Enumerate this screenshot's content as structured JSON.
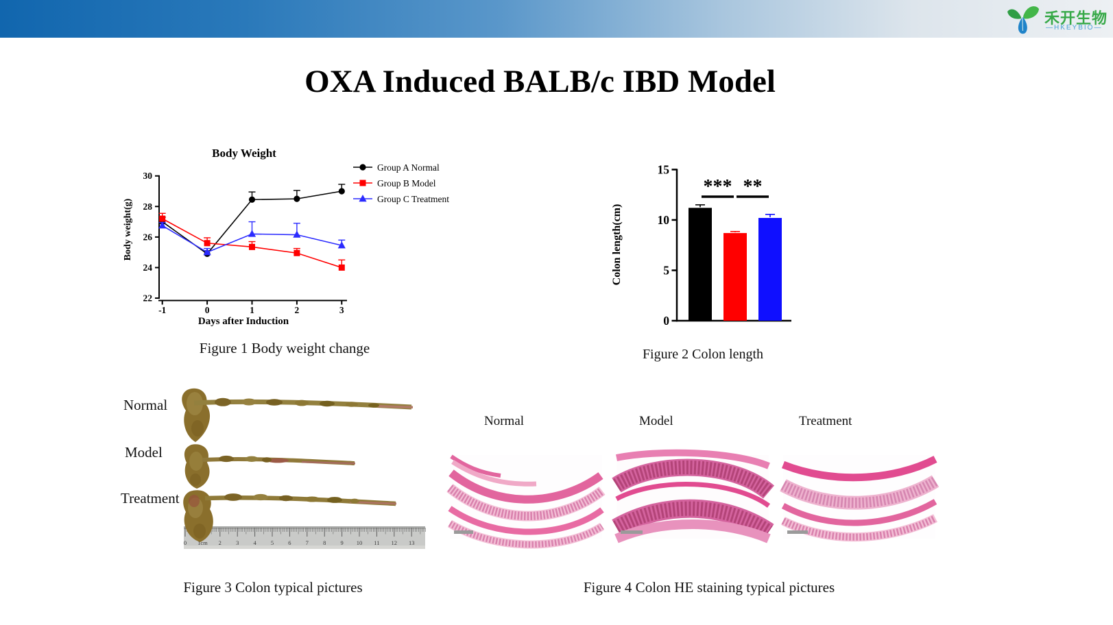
{
  "page": {
    "title": "OXA Induced BALB/c IBD Model"
  },
  "logo": {
    "company_cn": "禾开生物",
    "company_en": "—HKEYBIO—",
    "icon": "leaf-sprout-icon",
    "green": "#37a948",
    "blue": "#1f83c9"
  },
  "chart_data": [
    {
      "id": "body_weight",
      "type": "line",
      "title": "Body Weight",
      "xlabel": "Days after Induction",
      "ylabel": "Body weight(g)",
      "x": [
        -1,
        0,
        1,
        2,
        3
      ],
      "ylim": [
        22,
        30
      ],
      "yticks": [
        22,
        24,
        26,
        28,
        30
      ],
      "grid": false,
      "legend_position": "right",
      "series": [
        {
          "name": "Group A Normal",
          "color": "#000000",
          "marker": "circle",
          "values": [
            27.0,
            24.9,
            28.45,
            28.5,
            29.0
          ],
          "errors": [
            0.3,
            0.2,
            0.5,
            0.55,
            0.45
          ]
        },
        {
          "name": "Group B Model",
          "color": "#ff0000",
          "marker": "square",
          "values": [
            27.2,
            25.6,
            25.35,
            24.95,
            24.0
          ],
          "errors": [
            0.35,
            0.35,
            0.35,
            0.3,
            0.5
          ]
        },
        {
          "name": "Group C Treatment",
          "color": "#2b2bff",
          "marker": "triangle",
          "values": [
            26.75,
            25.0,
            26.2,
            26.15,
            25.45
          ],
          "errors": [
            0.2,
            0.25,
            0.8,
            0.75,
            0.35
          ]
        }
      ]
    },
    {
      "id": "colon_length",
      "type": "bar",
      "title": "",
      "ylabel": "Colon length(cm)",
      "ylim": [
        0,
        15
      ],
      "yticks": [
        0,
        5,
        10,
        15
      ],
      "values": [
        11.2,
        8.7,
        10.2
      ],
      "errors": [
        0.3,
        0.15,
        0.35
      ],
      "bar_colors": [
        "#000000",
        "#ff0000",
        "#0f0fff"
      ],
      "significance": [
        {
          "pair": [
            0,
            1
          ],
          "label": "***"
        },
        {
          "pair": [
            1,
            2
          ],
          "label": "**"
        }
      ]
    }
  ],
  "figure1": {
    "caption": "Figure 1 Body  weight change"
  },
  "figure2": {
    "caption": "Figure 2 Colon length"
  },
  "figure3": {
    "caption": "Figure 3 Colon typical pictures",
    "labels": [
      "Normal",
      "Model",
      "Treatment"
    ],
    "ruler_numbers": [
      "0",
      "1cm",
      "2",
      "3",
      "4",
      "5",
      "6",
      "7",
      "8",
      "9",
      "10",
      "11",
      "12",
      "13"
    ]
  },
  "figure4": {
    "caption": "Figure 4 Colon HE staining typical pictures",
    "labels": [
      "Normal",
      "Model",
      "Treatment"
    ]
  }
}
